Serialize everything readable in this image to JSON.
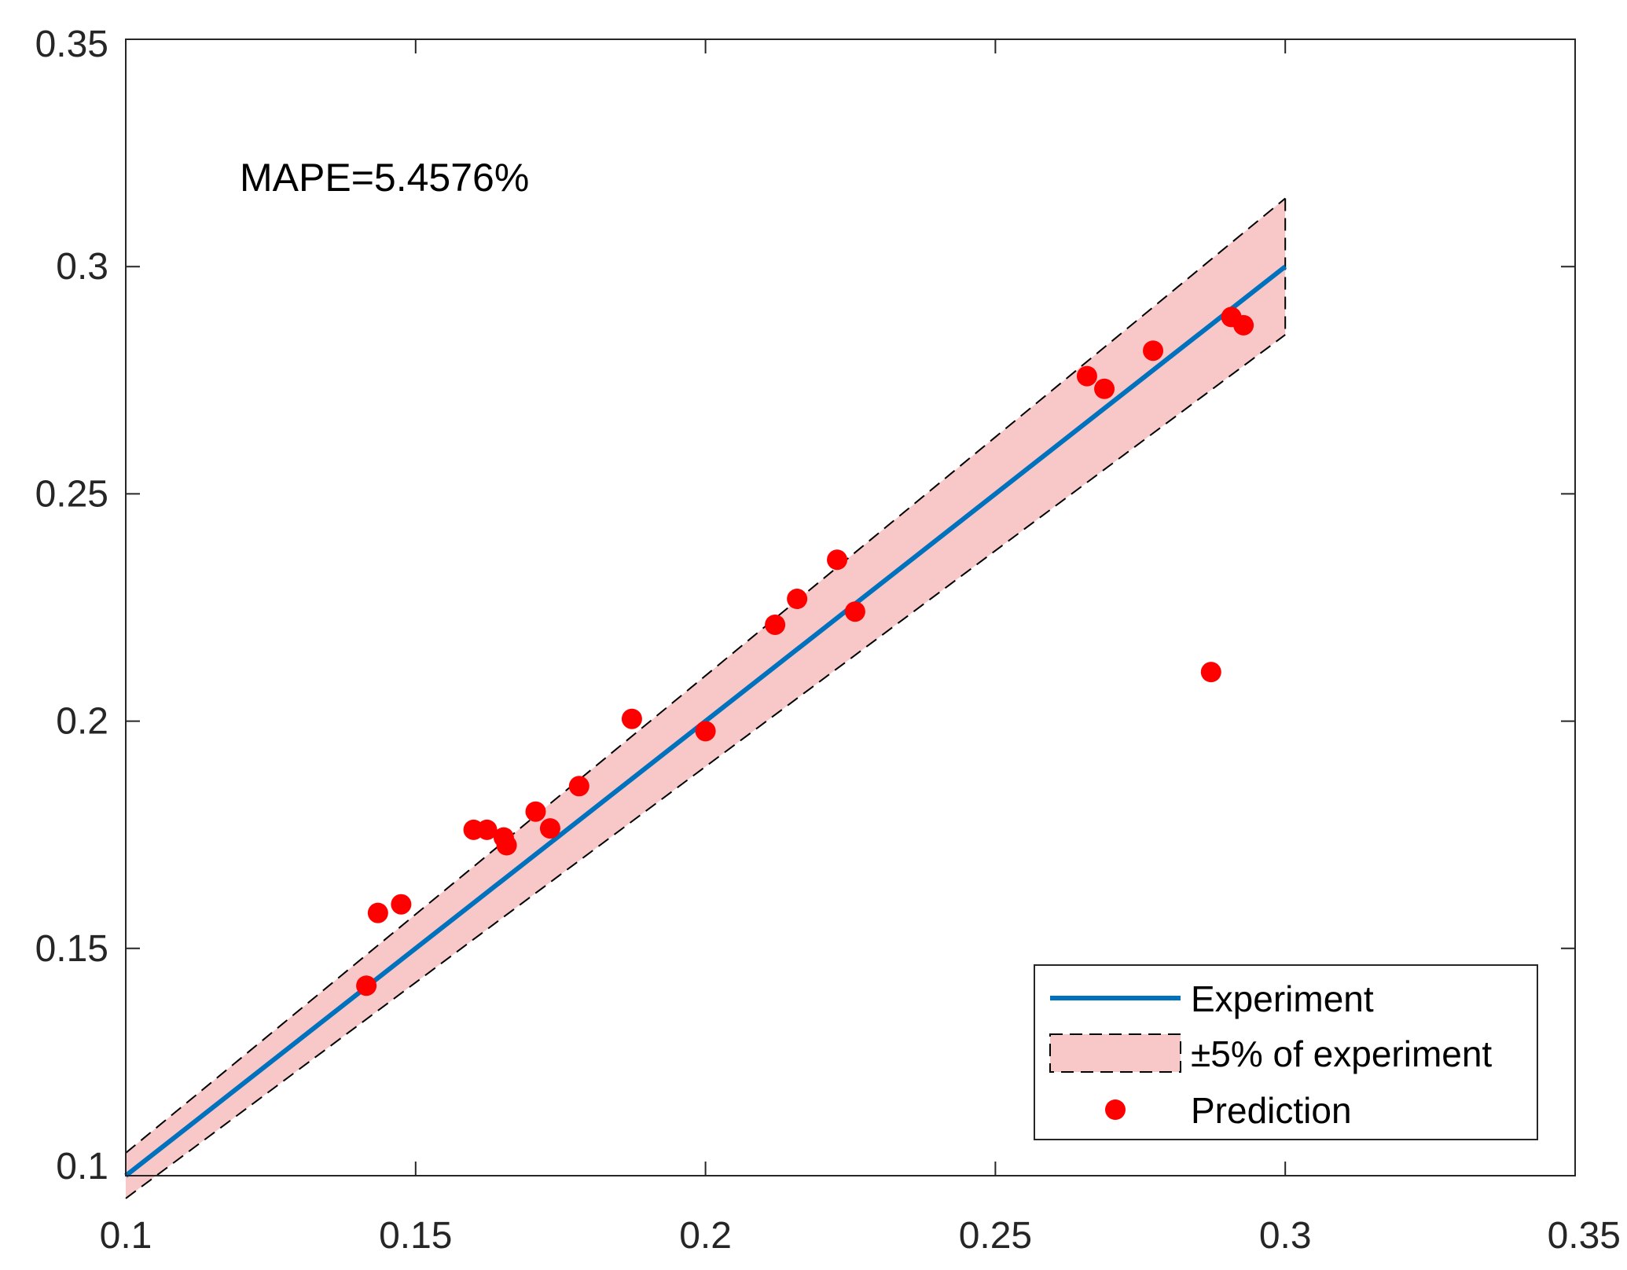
{
  "chart_data": {
    "type": "scatter",
    "title": "",
    "xlabel": "",
    "ylabel": "",
    "xlim": [
      0.1,
      0.35
    ],
    "ylim": [
      0.1,
      0.35
    ],
    "xticks": [
      0.1,
      0.15,
      0.2,
      0.25,
      0.3,
      0.35
    ],
    "yticks": [
      0.1,
      0.15,
      0.2,
      0.25,
      0.3,
      0.35
    ],
    "xtick_labels": [
      "0.1",
      "0.15",
      "0.2",
      "0.25",
      "0.3",
      "0.35"
    ],
    "ytick_labels": [
      "0.1",
      "0.15",
      "0.2",
      "0.25",
      "0.3",
      "0.35"
    ],
    "grid": false,
    "legend_position": "bottom-right",
    "annotation": "MAPE=5.4576%",
    "series": [
      {
        "name": "Experiment",
        "kind": "line",
        "color": "#0072BD",
        "x": [
          0.1,
          0.3
        ],
        "y": [
          0.1,
          0.3
        ]
      },
      {
        "name": "±5% of experiment",
        "kind": "band",
        "fill": "#F8C8C8",
        "edge": "#000000",
        "x": [
          0.1,
          0.3
        ],
        "lower": [
          0.095,
          0.285
        ],
        "upper": [
          0.105,
          0.315
        ]
      },
      {
        "name": "Prediction",
        "kind": "scatter",
        "color": "#FF0000",
        "points": [
          [
            0.1415,
            0.1418
          ],
          [
            0.1435,
            0.1578
          ],
          [
            0.1475,
            0.1597
          ],
          [
            0.16,
            0.1761
          ],
          [
            0.1623,
            0.1761
          ],
          [
            0.1652,
            0.1744
          ],
          [
            0.1657,
            0.1727
          ],
          [
            0.1707,
            0.1801
          ],
          [
            0.1732,
            0.1764
          ],
          [
            0.1782,
            0.1857
          ],
          [
            0.1873,
            0.2005
          ],
          [
            0.2,
            0.1978
          ],
          [
            0.212,
            0.2212
          ],
          [
            0.2158,
            0.2269
          ],
          [
            0.2227,
            0.2355
          ],
          [
            0.2258,
            0.2241
          ],
          [
            0.2658,
            0.2759
          ],
          [
            0.2688,
            0.2731
          ],
          [
            0.2772,
            0.2815
          ],
          [
            0.2872,
            0.2108
          ],
          [
            0.2907,
            0.2889
          ],
          [
            0.2928,
            0.2871
          ]
        ]
      }
    ]
  }
}
